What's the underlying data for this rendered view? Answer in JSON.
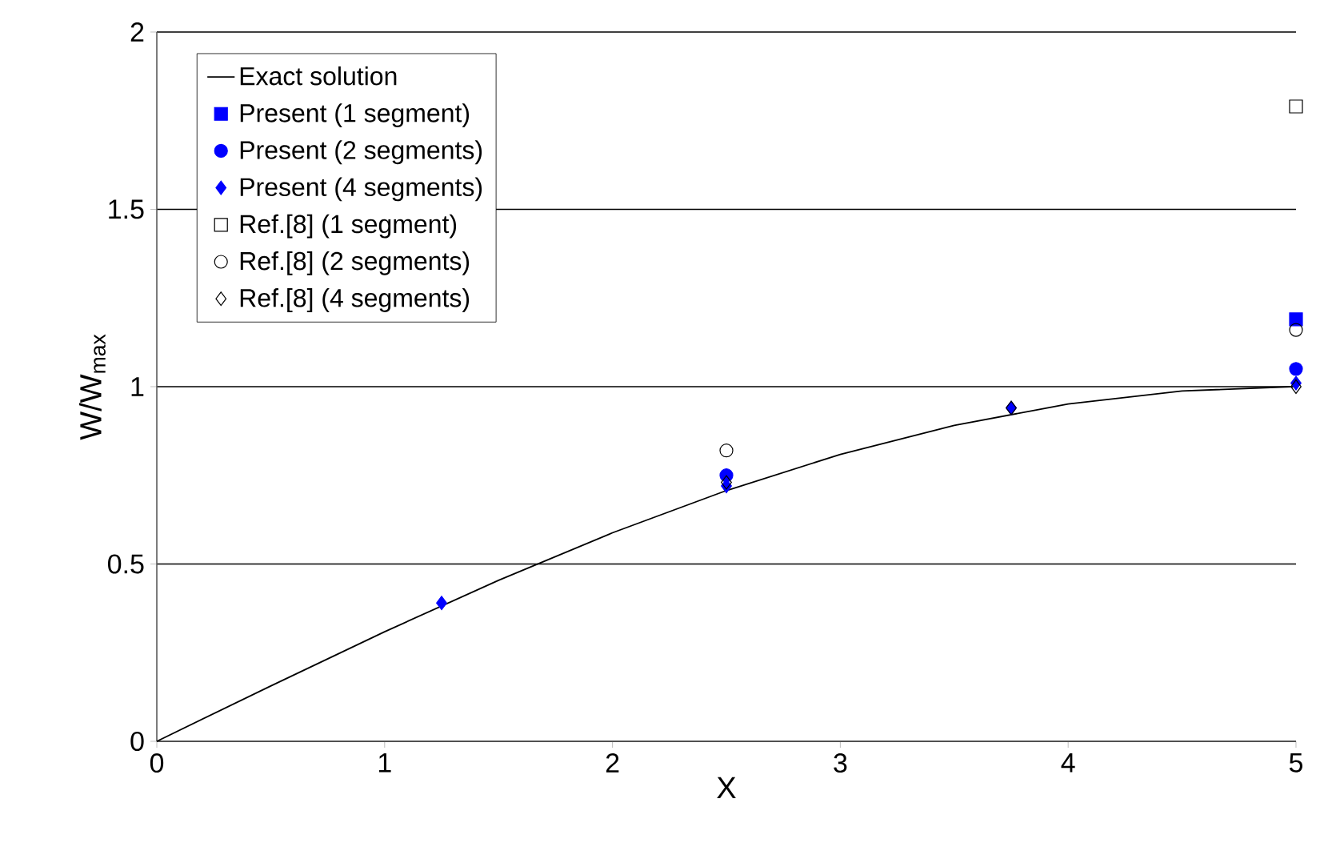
{
  "chart_data": {
    "type": "scatter",
    "xlabel": "X",
    "ylabel": "W/W$_{max}$",
    "xlim": [
      0,
      5
    ],
    "ylim": [
      0,
      2
    ],
    "xticks": [
      0,
      1,
      2,
      3,
      4,
      5
    ],
    "yticks": [
      0,
      0.5,
      1,
      1.5,
      2
    ],
    "grid": "y",
    "legend": "top left",
    "series": [
      {
        "name": "Exact solution",
        "type": "line",
        "marker": "none",
        "color": "#000000",
        "x": [
          0,
          0.5,
          1,
          1.5,
          2,
          2.5,
          3,
          3.5,
          4,
          4.5,
          5
        ],
        "values": [
          0,
          0.156,
          0.309,
          0.454,
          0.588,
          0.707,
          0.809,
          0.891,
          0.951,
          0.988,
          1.0
        ]
      },
      {
        "name": "Present (1 segment)",
        "marker": "square",
        "color": "#0000ff",
        "x": [
          5
        ],
        "values": [
          1.19
        ]
      },
      {
        "name": "Present (2 segments)",
        "marker": "circle",
        "color": "#0000ff",
        "x": [
          2.5,
          5
        ],
        "values": [
          0.75,
          1.05
        ]
      },
      {
        "name": "Present (4 segments)",
        "marker": "diamond",
        "color": "#0000ff",
        "x": [
          1.25,
          2.5,
          3.75,
          5
        ],
        "values": [
          0.39,
          0.72,
          0.94,
          1.01
        ]
      },
      {
        "name": "Ref.[8] (1 segment)",
        "marker": "square",
        "color": "#000000",
        "x": [
          5
        ],
        "values": [
          1.79
        ]
      },
      {
        "name": "Ref.[8] (2 segments)",
        "marker": "circle",
        "color": "#000000",
        "x": [
          2.5,
          5
        ],
        "values": [
          0.82,
          1.16
        ]
      },
      {
        "name": "Ref.[8] (4 segments)",
        "marker": "diamond",
        "color": "#000000",
        "x": [
          2.5,
          3.75,
          5
        ],
        "values": [
          0.73,
          0.94,
          1.0
        ]
      }
    ]
  }
}
